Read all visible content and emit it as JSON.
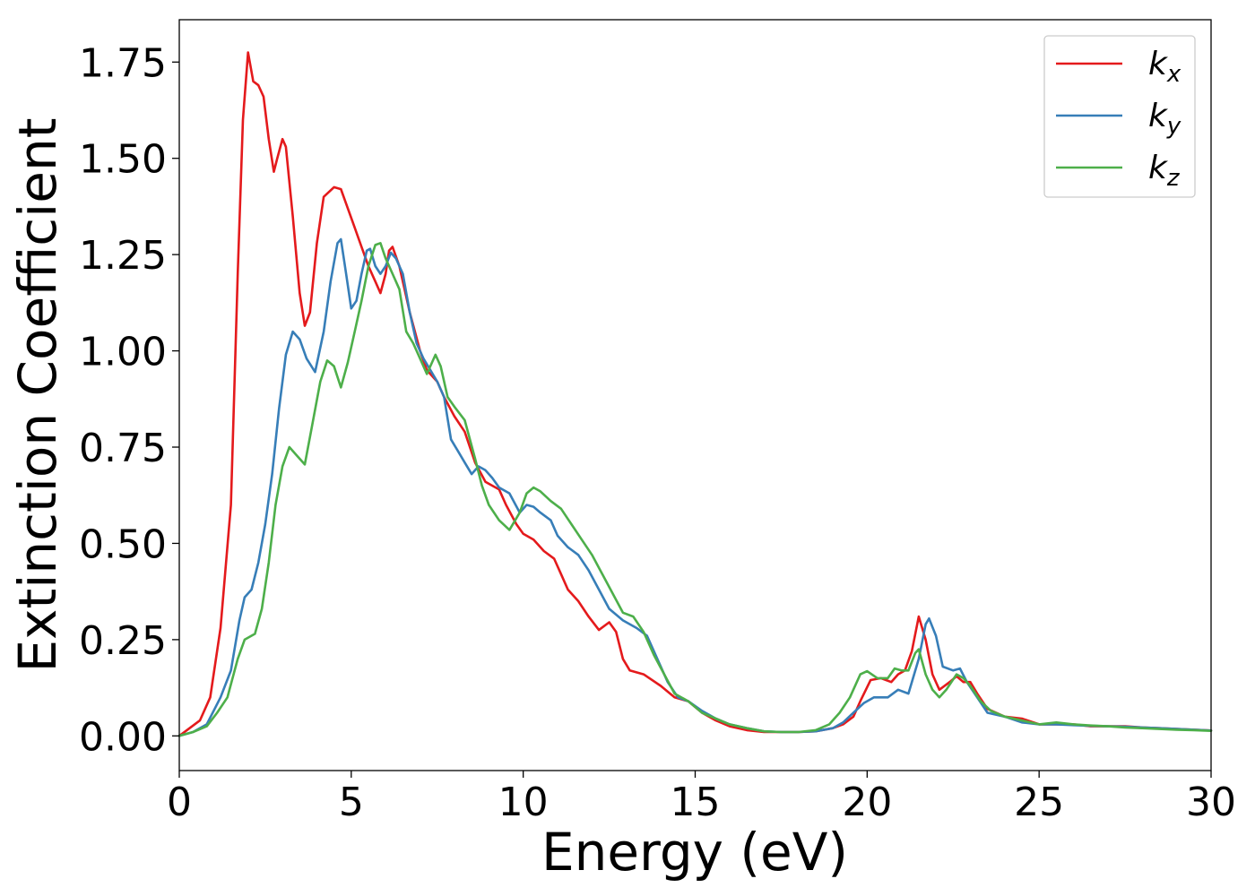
{
  "chart_data": {
    "type": "line",
    "xlabel": "Energy (eV)",
    "ylabel": "Extinction Coefficient",
    "xlim": [
      0,
      30
    ],
    "ylim": [
      -0.09,
      1.86
    ],
    "x_ticks": [
      0,
      5,
      10,
      15,
      20,
      25,
      30
    ],
    "x_tick_labels": [
      "0",
      "5",
      "10",
      "15",
      "20",
      "25",
      "30"
    ],
    "y_ticks": [
      0,
      0.25,
      0.5,
      0.75,
      1.0,
      1.25,
      1.5,
      1.75
    ],
    "y_tick_labels": [
      "0.00",
      "0.25",
      "0.50",
      "0.75",
      "1.00",
      "1.25",
      "1.50",
      "1.75"
    ],
    "grid": false,
    "legend_position": "top-right",
    "series": [
      {
        "name": "k_x",
        "label_base": "k",
        "label_sub": "x",
        "color": "#e41a1c",
        "points": [
          [
            0,
            0.0
          ],
          [
            0.3,
            0.02
          ],
          [
            0.6,
            0.04
          ],
          [
            0.9,
            0.1
          ],
          [
            1.2,
            0.28
          ],
          [
            1.5,
            0.6
          ],
          [
            1.7,
            1.2
          ],
          [
            1.85,
            1.6
          ],
          [
            2.0,
            1.775
          ],
          [
            2.15,
            1.7
          ],
          [
            2.3,
            1.69
          ],
          [
            2.45,
            1.66
          ],
          [
            2.6,
            1.55
          ],
          [
            2.75,
            1.465
          ],
          [
            2.85,
            1.5
          ],
          [
            3.0,
            1.55
          ],
          [
            3.1,
            1.53
          ],
          [
            3.3,
            1.35
          ],
          [
            3.5,
            1.15
          ],
          [
            3.65,
            1.065
          ],
          [
            3.8,
            1.1
          ],
          [
            4.0,
            1.28
          ],
          [
            4.2,
            1.4
          ],
          [
            4.5,
            1.425
          ],
          [
            4.7,
            1.42
          ],
          [
            4.9,
            1.37
          ],
          [
            5.1,
            1.32
          ],
          [
            5.3,
            1.27
          ],
          [
            5.5,
            1.22
          ],
          [
            5.7,
            1.18
          ],
          [
            5.85,
            1.15
          ],
          [
            6.0,
            1.2
          ],
          [
            6.1,
            1.26
          ],
          [
            6.2,
            1.27
          ],
          [
            6.4,
            1.22
          ],
          [
            6.7,
            1.1
          ],
          [
            7.0,
            1.0
          ],
          [
            7.2,
            0.95
          ],
          [
            7.5,
            0.92
          ],
          [
            7.7,
            0.88
          ],
          [
            8.0,
            0.83
          ],
          [
            8.3,
            0.79
          ],
          [
            8.6,
            0.71
          ],
          [
            8.9,
            0.66
          ],
          [
            9.1,
            0.65
          ],
          [
            9.3,
            0.64
          ],
          [
            9.5,
            0.6
          ],
          [
            9.8,
            0.55
          ],
          [
            10.0,
            0.525
          ],
          [
            10.3,
            0.51
          ],
          [
            10.6,
            0.48
          ],
          [
            10.9,
            0.46
          ],
          [
            11.1,
            0.42
          ],
          [
            11.3,
            0.38
          ],
          [
            11.6,
            0.35
          ],
          [
            11.9,
            0.31
          ],
          [
            12.2,
            0.275
          ],
          [
            12.5,
            0.295
          ],
          [
            12.7,
            0.27
          ],
          [
            12.9,
            0.2
          ],
          [
            13.1,
            0.17
          ],
          [
            13.5,
            0.16
          ],
          [
            14.0,
            0.13
          ],
          [
            14.4,
            0.1
          ],
          [
            14.8,
            0.09
          ],
          [
            15.2,
            0.06
          ],
          [
            15.6,
            0.04
          ],
          [
            16.0,
            0.025
          ],
          [
            16.5,
            0.015
          ],
          [
            17.0,
            0.01
          ],
          [
            17.5,
            0.01
          ],
          [
            18.0,
            0.01
          ],
          [
            18.5,
            0.012
          ],
          [
            19.0,
            0.02
          ],
          [
            19.3,
            0.03
          ],
          [
            19.6,
            0.05
          ],
          [
            19.8,
            0.09
          ],
          [
            20.1,
            0.145
          ],
          [
            20.4,
            0.15
          ],
          [
            20.7,
            0.14
          ],
          [
            20.9,
            0.16
          ],
          [
            21.1,
            0.17
          ],
          [
            21.3,
            0.22
          ],
          [
            21.5,
            0.31
          ],
          [
            21.7,
            0.25
          ],
          [
            21.9,
            0.16
          ],
          [
            22.1,
            0.12
          ],
          [
            22.4,
            0.14
          ],
          [
            22.6,
            0.155
          ],
          [
            22.8,
            0.14
          ],
          [
            23.0,
            0.14
          ],
          [
            23.2,
            0.11
          ],
          [
            23.5,
            0.07
          ],
          [
            24.0,
            0.05
          ],
          [
            24.5,
            0.045
          ],
          [
            25.0,
            0.03
          ],
          [
            25.5,
            0.03
          ],
          [
            26.0,
            0.03
          ],
          [
            26.5,
            0.025
          ],
          [
            27.0,
            0.025
          ],
          [
            27.5,
            0.025
          ],
          [
            28.0,
            0.022
          ],
          [
            28.5,
            0.02
          ],
          [
            29.0,
            0.018
          ],
          [
            29.5,
            0.016
          ],
          [
            30.0,
            0.014
          ]
        ]
      },
      {
        "name": "k_y",
        "label_base": "k",
        "label_sub": "y",
        "color": "#377eb8",
        "points": [
          [
            0,
            0.0
          ],
          [
            0.4,
            0.01
          ],
          [
            0.8,
            0.03
          ],
          [
            1.2,
            0.1
          ],
          [
            1.5,
            0.17
          ],
          [
            1.75,
            0.3
          ],
          [
            1.9,
            0.36
          ],
          [
            2.1,
            0.38
          ],
          [
            2.3,
            0.45
          ],
          [
            2.5,
            0.55
          ],
          [
            2.7,
            0.68
          ],
          [
            2.9,
            0.85
          ],
          [
            3.1,
            0.99
          ],
          [
            3.3,
            1.05
          ],
          [
            3.5,
            1.03
          ],
          [
            3.7,
            0.98
          ],
          [
            3.95,
            0.945
          ],
          [
            4.2,
            1.05
          ],
          [
            4.4,
            1.18
          ],
          [
            4.6,
            1.28
          ],
          [
            4.7,
            1.29
          ],
          [
            4.85,
            1.2
          ],
          [
            5.0,
            1.11
          ],
          [
            5.15,
            1.13
          ],
          [
            5.3,
            1.2
          ],
          [
            5.45,
            1.26
          ],
          [
            5.55,
            1.265
          ],
          [
            5.7,
            1.22
          ],
          [
            5.85,
            1.2
          ],
          [
            6.0,
            1.22
          ],
          [
            6.15,
            1.255
          ],
          [
            6.3,
            1.24
          ],
          [
            6.5,
            1.2
          ],
          [
            6.7,
            1.1
          ],
          [
            6.9,
            1.02
          ],
          [
            7.1,
            0.98
          ],
          [
            7.3,
            0.95
          ],
          [
            7.5,
            0.92
          ],
          [
            7.7,
            0.88
          ],
          [
            7.9,
            0.77
          ],
          [
            8.1,
            0.74
          ],
          [
            8.3,
            0.71
          ],
          [
            8.5,
            0.68
          ],
          [
            8.7,
            0.7
          ],
          [
            8.9,
            0.69
          ],
          [
            9.1,
            0.67
          ],
          [
            9.3,
            0.645
          ],
          [
            9.6,
            0.63
          ],
          [
            9.9,
            0.58
          ],
          [
            10.1,
            0.6
          ],
          [
            10.3,
            0.595
          ],
          [
            10.5,
            0.58
          ],
          [
            10.8,
            0.56
          ],
          [
            11.0,
            0.52
          ],
          [
            11.3,
            0.49
          ],
          [
            11.6,
            0.47
          ],
          [
            11.9,
            0.43
          ],
          [
            12.2,
            0.38
          ],
          [
            12.5,
            0.33
          ],
          [
            12.9,
            0.3
          ],
          [
            13.3,
            0.28
          ],
          [
            13.6,
            0.26
          ],
          [
            13.9,
            0.2
          ],
          [
            14.2,
            0.14
          ],
          [
            14.5,
            0.1
          ],
          [
            14.8,
            0.09
          ],
          [
            15.2,
            0.065
          ],
          [
            15.6,
            0.045
          ],
          [
            16.0,
            0.03
          ],
          [
            16.5,
            0.02
          ],
          [
            17.0,
            0.012
          ],
          [
            17.5,
            0.01
          ],
          [
            18.0,
            0.01
          ],
          [
            18.5,
            0.012
          ],
          [
            19.0,
            0.02
          ],
          [
            19.3,
            0.035
          ],
          [
            19.6,
            0.06
          ],
          [
            19.9,
            0.085
          ],
          [
            20.2,
            0.1
          ],
          [
            20.6,
            0.1
          ],
          [
            20.9,
            0.12
          ],
          [
            21.2,
            0.11
          ],
          [
            21.5,
            0.2
          ],
          [
            21.7,
            0.29
          ],
          [
            21.8,
            0.305
          ],
          [
            22.0,
            0.26
          ],
          [
            22.2,
            0.18
          ],
          [
            22.5,
            0.17
          ],
          [
            22.7,
            0.175
          ],
          [
            22.9,
            0.14
          ],
          [
            23.2,
            0.1
          ],
          [
            23.5,
            0.06
          ],
          [
            24.0,
            0.05
          ],
          [
            24.5,
            0.035
          ],
          [
            25.0,
            0.03
          ],
          [
            25.5,
            0.03
          ],
          [
            26.0,
            0.028
          ],
          [
            26.5,
            0.026
          ],
          [
            27.0,
            0.025
          ],
          [
            27.5,
            0.024
          ],
          [
            28.0,
            0.022
          ],
          [
            28.5,
            0.02
          ],
          [
            29.0,
            0.018
          ],
          [
            29.5,
            0.016
          ],
          [
            30.0,
            0.014
          ]
        ]
      },
      {
        "name": "k_z",
        "label_base": "k",
        "label_sub": "z",
        "color": "#4daf4a",
        "points": [
          [
            0,
            0.0
          ],
          [
            0.4,
            0.01
          ],
          [
            0.8,
            0.025
          ],
          [
            1.1,
            0.06
          ],
          [
            1.4,
            0.1
          ],
          [
            1.7,
            0.2
          ],
          [
            1.9,
            0.25
          ],
          [
            2.2,
            0.265
          ],
          [
            2.4,
            0.33
          ],
          [
            2.6,
            0.45
          ],
          [
            2.8,
            0.6
          ],
          [
            3.0,
            0.7
          ],
          [
            3.2,
            0.75
          ],
          [
            3.4,
            0.73
          ],
          [
            3.65,
            0.705
          ],
          [
            3.85,
            0.8
          ],
          [
            4.1,
            0.92
          ],
          [
            4.3,
            0.975
          ],
          [
            4.5,
            0.96
          ],
          [
            4.7,
            0.905
          ],
          [
            4.9,
            0.97
          ],
          [
            5.1,
            1.05
          ],
          [
            5.3,
            1.13
          ],
          [
            5.5,
            1.22
          ],
          [
            5.7,
            1.275
          ],
          [
            5.85,
            1.28
          ],
          [
            6.0,
            1.24
          ],
          [
            6.2,
            1.2
          ],
          [
            6.4,
            1.16
          ],
          [
            6.6,
            1.05
          ],
          [
            6.8,
            1.02
          ],
          [
            7.0,
            0.98
          ],
          [
            7.2,
            0.94
          ],
          [
            7.45,
            0.99
          ],
          [
            7.6,
            0.96
          ],
          [
            7.8,
            0.88
          ],
          [
            8.0,
            0.855
          ],
          [
            8.3,
            0.82
          ],
          [
            8.6,
            0.72
          ],
          [
            8.8,
            0.65
          ],
          [
            9.0,
            0.6
          ],
          [
            9.3,
            0.56
          ],
          [
            9.6,
            0.535
          ],
          [
            9.9,
            0.58
          ],
          [
            10.1,
            0.63
          ],
          [
            10.3,
            0.645
          ],
          [
            10.5,
            0.635
          ],
          [
            10.8,
            0.61
          ],
          [
            11.1,
            0.59
          ],
          [
            11.4,
            0.55
          ],
          [
            11.7,
            0.51
          ],
          [
            12.0,
            0.47
          ],
          [
            12.3,
            0.42
          ],
          [
            12.6,
            0.37
          ],
          [
            12.9,
            0.32
          ],
          [
            13.2,
            0.31
          ],
          [
            13.5,
            0.27
          ],
          [
            13.8,
            0.21
          ],
          [
            14.1,
            0.16
          ],
          [
            14.4,
            0.11
          ],
          [
            14.8,
            0.09
          ],
          [
            15.2,
            0.06
          ],
          [
            15.6,
            0.045
          ],
          [
            16.0,
            0.03
          ],
          [
            16.5,
            0.02
          ],
          [
            17.0,
            0.012
          ],
          [
            17.5,
            0.01
          ],
          [
            18.0,
            0.01
          ],
          [
            18.5,
            0.015
          ],
          [
            18.9,
            0.03
          ],
          [
            19.2,
            0.06
          ],
          [
            19.5,
            0.1
          ],
          [
            19.8,
            0.16
          ],
          [
            20.0,
            0.168
          ],
          [
            20.3,
            0.15
          ],
          [
            20.6,
            0.15
          ],
          [
            20.8,
            0.175
          ],
          [
            21.0,
            0.17
          ],
          [
            21.2,
            0.17
          ],
          [
            21.4,
            0.215
          ],
          [
            21.5,
            0.225
          ],
          [
            21.7,
            0.16
          ],
          [
            21.9,
            0.12
          ],
          [
            22.1,
            0.1
          ],
          [
            22.3,
            0.12
          ],
          [
            22.6,
            0.16
          ],
          [
            22.8,
            0.15
          ],
          [
            23.0,
            0.13
          ],
          [
            23.3,
            0.09
          ],
          [
            23.6,
            0.065
          ],
          [
            24.0,
            0.05
          ],
          [
            24.5,
            0.04
          ],
          [
            25.0,
            0.03
          ],
          [
            25.5,
            0.035
          ],
          [
            26.0,
            0.03
          ],
          [
            26.5,
            0.027
          ],
          [
            27.0,
            0.025
          ],
          [
            27.5,
            0.022
          ],
          [
            28.0,
            0.02
          ],
          [
            28.5,
            0.018
          ],
          [
            29.0,
            0.016
          ],
          [
            29.5,
            0.015
          ],
          [
            30.0,
            0.013
          ]
        ]
      }
    ]
  }
}
